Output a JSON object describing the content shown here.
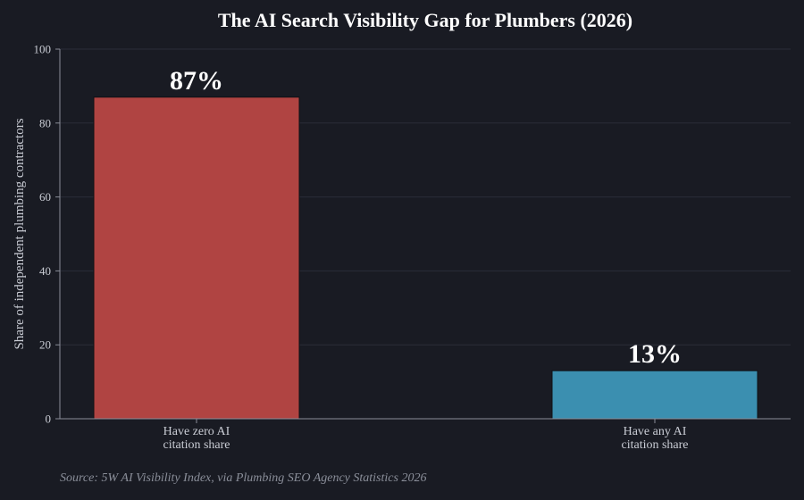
{
  "chart_data": {
    "type": "bar",
    "title": "The AI Search Visibility Gap for Plumbers (2026)",
    "xlabel": "",
    "ylabel": "Share of independent plumbing contractors",
    "ylim": [
      0,
      100
    ],
    "yticks": [
      0,
      20,
      40,
      60,
      80,
      100
    ],
    "grid": true,
    "categories": [
      [
        "Have zero AI",
        "citation share"
      ],
      [
        "Have any AI",
        "citation share"
      ]
    ],
    "values": [
      87,
      13
    ],
    "data_labels": [
      "87%",
      "13%"
    ],
    "colors": [
      "#b04442",
      "#3b8fb0"
    ],
    "source": "Source: 5W AI Visibility Index, via Plumbing SEO Agency Statistics 2026"
  }
}
